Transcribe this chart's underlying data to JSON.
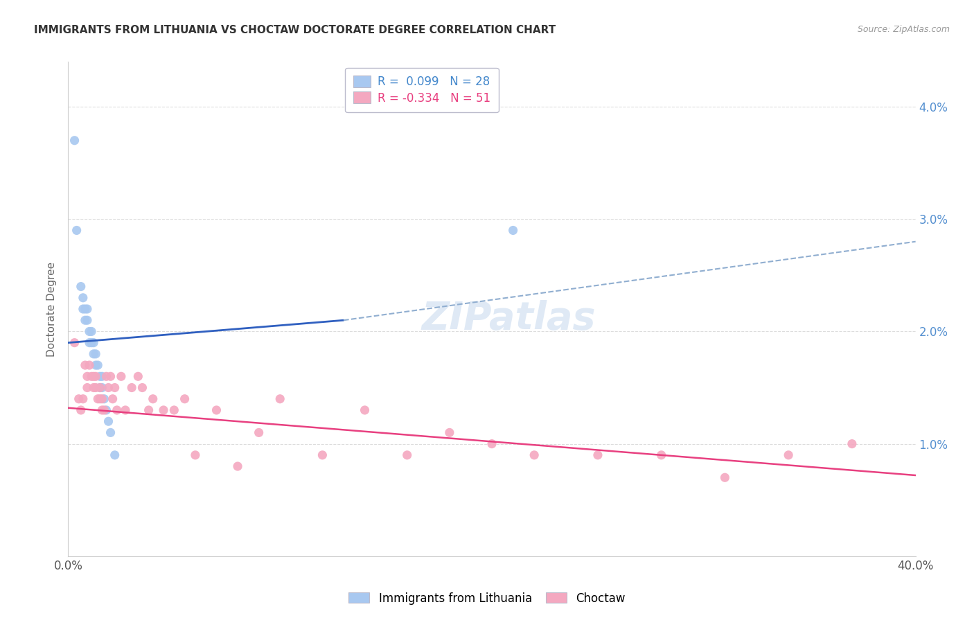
{
  "title": "IMMIGRANTS FROM LITHUANIA VS CHOCTAW DOCTORATE DEGREE CORRELATION CHART",
  "source": "Source: ZipAtlas.com",
  "ylabel": "Doctorate Degree",
  "xlim": [
    0.0,
    0.4
  ],
  "ylim": [
    0.0,
    0.044
  ],
  "yticks": [
    0.0,
    0.01,
    0.02,
    0.03,
    0.04
  ],
  "ytick_labels": [
    "",
    "1.0%",
    "2.0%",
    "3.0%",
    "4.0%"
  ],
  "xticks": [
    0.0,
    0.08,
    0.16,
    0.24,
    0.32,
    0.4
  ],
  "xtick_labels": [
    "0.0%",
    "",
    "",
    "",
    "",
    "40.0%"
  ],
  "legend_r1": "R =  0.099   N = 28",
  "legend_r2": "R = -0.334   N = 51",
  "blue_color": "#a8c8f0",
  "pink_color": "#f4a8c0",
  "blue_line_color": "#3060c0",
  "pink_line_color": "#e84080",
  "dashed_line_color": "#90aed0",
  "watermark": "ZIPatlas",
  "blue_scatter_x": [
    0.003,
    0.004,
    0.006,
    0.007,
    0.007,
    0.008,
    0.008,
    0.009,
    0.009,
    0.01,
    0.01,
    0.011,
    0.011,
    0.012,
    0.012,
    0.013,
    0.013,
    0.014,
    0.015,
    0.015,
    0.016,
    0.016,
    0.017,
    0.018,
    0.019,
    0.02,
    0.022,
    0.21
  ],
  "blue_scatter_y": [
    0.037,
    0.029,
    0.024,
    0.023,
    0.022,
    0.022,
    0.021,
    0.022,
    0.021,
    0.02,
    0.019,
    0.02,
    0.019,
    0.019,
    0.018,
    0.018,
    0.017,
    0.017,
    0.016,
    0.015,
    0.016,
    0.015,
    0.014,
    0.013,
    0.012,
    0.011,
    0.009,
    0.029
  ],
  "pink_scatter_x": [
    0.003,
    0.005,
    0.006,
    0.007,
    0.008,
    0.009,
    0.009,
    0.01,
    0.011,
    0.012,
    0.012,
    0.013,
    0.013,
    0.014,
    0.015,
    0.015,
    0.016,
    0.016,
    0.017,
    0.018,
    0.019,
    0.02,
    0.021,
    0.022,
    0.023,
    0.025,
    0.027,
    0.03,
    0.033,
    0.035,
    0.038,
    0.04,
    0.045,
    0.05,
    0.055,
    0.06,
    0.07,
    0.08,
    0.09,
    0.1,
    0.12,
    0.14,
    0.16,
    0.18,
    0.2,
    0.22,
    0.25,
    0.28,
    0.31,
    0.34,
    0.37
  ],
  "pink_scatter_y": [
    0.019,
    0.014,
    0.013,
    0.014,
    0.017,
    0.016,
    0.015,
    0.017,
    0.016,
    0.016,
    0.015,
    0.016,
    0.015,
    0.014,
    0.015,
    0.014,
    0.014,
    0.013,
    0.013,
    0.016,
    0.015,
    0.016,
    0.014,
    0.015,
    0.013,
    0.016,
    0.013,
    0.015,
    0.016,
    0.015,
    0.013,
    0.014,
    0.013,
    0.013,
    0.014,
    0.009,
    0.013,
    0.008,
    0.011,
    0.014,
    0.009,
    0.013,
    0.009,
    0.011,
    0.01,
    0.009,
    0.009,
    0.009,
    0.007,
    0.009,
    0.01
  ],
  "blue_line_x": [
    0.0,
    0.13
  ],
  "blue_line_y": [
    0.019,
    0.021
  ],
  "dashed_line_x": [
    0.13,
    0.4
  ],
  "dashed_line_y": [
    0.021,
    0.028
  ],
  "pink_line_x": [
    0.0,
    0.4
  ],
  "pink_line_y": [
    0.0132,
    0.0072
  ]
}
